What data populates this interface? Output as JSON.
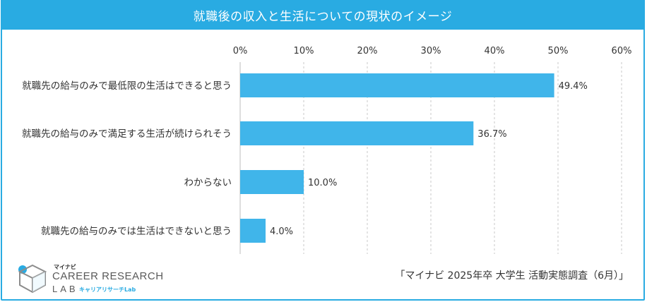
{
  "header": {
    "title": "就職後の収入と生活についての現状のイメージ"
  },
  "chart_data": {
    "type": "bar",
    "orientation": "horizontal",
    "title": "就職後の収入と生活についての現状のイメージ",
    "categories": [
      "就職先の給与のみで最低限の生活はできると思う",
      "就職先の給与のみで満足する生活が続けられそう",
      "わからない",
      "就職先の給与のみでは生活はできないと思う"
    ],
    "values": [
      49.4,
      36.7,
      10.0,
      4.0
    ],
    "value_labels": [
      "49.4%",
      "36.7%",
      "10.0%",
      "4.0%"
    ],
    "xlim": [
      0,
      60
    ],
    "ticks": [
      0,
      10,
      20,
      30,
      40,
      50,
      60
    ],
    "tick_labels": [
      "0%",
      "10%",
      "20%",
      "30%",
      "40%",
      "50%",
      "60%"
    ],
    "grid": true,
    "bar_color": "#40b5ea"
  },
  "source": {
    "text": "「マイナビ 2025年卒 大学生 活動実態調査（6月）」"
  },
  "logo": {
    "top_text": "マイナビ",
    "main_text": "CAREER RESEARCH",
    "lab_text": "LAB",
    "sub_text": "キャリアリサーチLab"
  },
  "colors": {
    "accent": "#29abe2",
    "bar": "#40b5ea"
  }
}
